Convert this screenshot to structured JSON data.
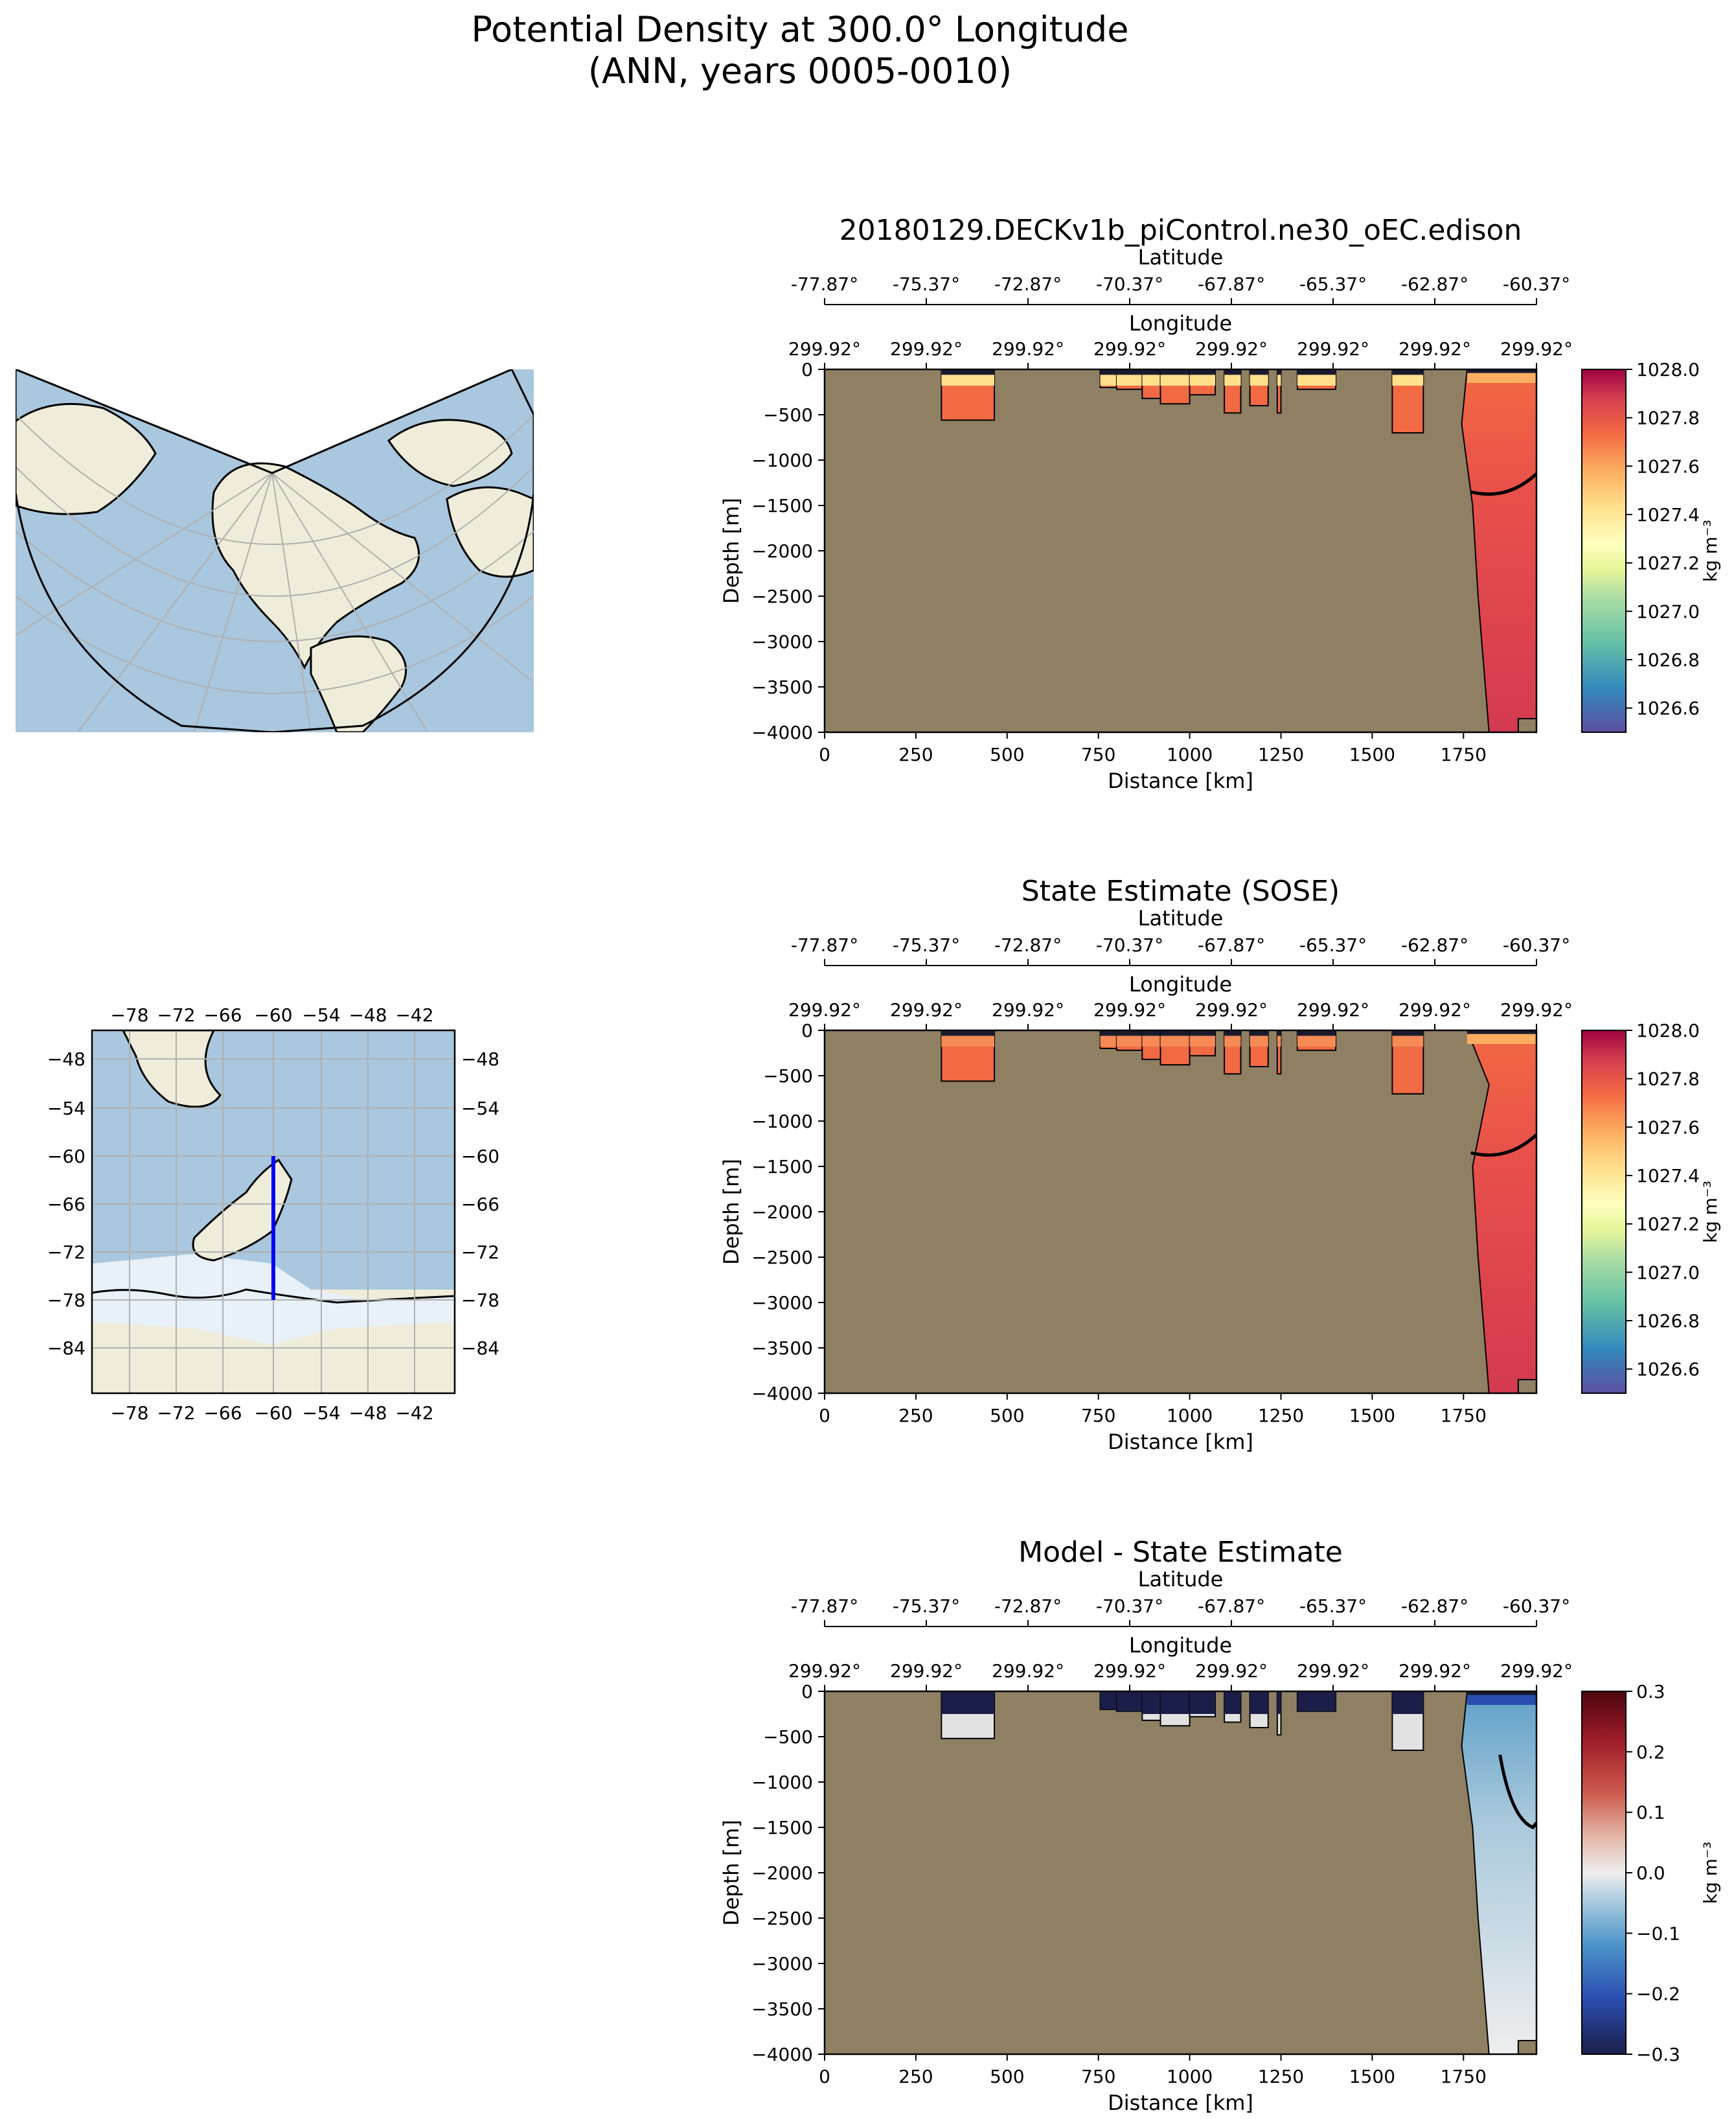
{
  "figure": {
    "title_line1": "Potential Density at 300.0° Longitude",
    "title_line2": "(ANN, years 0005-0010)"
  },
  "colors": {
    "land_fill": "#8f8063",
    "ocean_map": "#a9c7de",
    "land_map": "#efedda",
    "ice_map": "#e8f0f8",
    "transect_line": "#0000ff"
  },
  "chart_data": [
    {
      "type": "heatmap",
      "panel": "model",
      "title": "20180129.DECKv1b_piControl.ne30_oEC.edison",
      "xlabel": "Distance [km]",
      "ylabel": "Depth [m]",
      "xlim": [
        0,
        1950
      ],
      "ylim": [
        -4000,
        0
      ],
      "xticks": [
        "0",
        "250",
        "500",
        "750",
        "1000",
        "1250",
        "1500",
        "1750"
      ],
      "yticks": [
        "0",
        "−500",
        "−1000",
        "−1500",
        "−2000",
        "−2500",
        "−3000",
        "−3500",
        "−4000"
      ],
      "top_axis_1_label": "Latitude",
      "top_axis_1_ticks": [
        "-77.87°",
        "-75.37°",
        "-72.87°",
        "-70.37°",
        "-67.87°",
        "-65.37°",
        "-62.87°",
        "-60.37°"
      ],
      "top_axis_2_label": "Longitude",
      "top_axis_2_ticks": [
        "299.92°",
        "299.92°",
        "299.92°",
        "299.92°",
        "299.92°",
        "299.92°",
        "299.92°",
        "299.92°"
      ],
      "colorbar": {
        "label": "kg m⁻³",
        "ticks": [
          "1026.6",
          "1026.8",
          "1027.0",
          "1027.2",
          "1027.4",
          "1027.6",
          "1027.8",
          "1028.0"
        ],
        "range": [
          1026.5,
          1028.0
        ],
        "colormap": "Spectral_r"
      },
      "water_columns_km": [
        [
          320,
          465
        ],
        [
          755,
          920
        ],
        [
          920,
          1070
        ],
        [
          1095,
          1140
        ],
        [
          1165,
          1215
        ],
        [
          1240,
          1250
        ],
        [
          1295,
          1400
        ],
        [
          1555,
          1640
        ],
        [
          1760,
          1950
        ]
      ]
    },
    {
      "type": "heatmap",
      "panel": "observation",
      "title": "State Estimate (SOSE)",
      "xlabel": "Distance [km]",
      "ylabel": "Depth [m]",
      "xlim": [
        0,
        1950
      ],
      "ylim": [
        -4000,
        0
      ],
      "xticks": [
        "0",
        "250",
        "500",
        "750",
        "1000",
        "1250",
        "1500",
        "1750"
      ],
      "yticks": [
        "0",
        "−500",
        "−1000",
        "−1500",
        "−2000",
        "−2500",
        "−3000",
        "−3500",
        "−4000"
      ],
      "top_axis_1_label": "Latitude",
      "top_axis_1_ticks": [
        "-77.87°",
        "-75.37°",
        "-72.87°",
        "-70.37°",
        "-67.87°",
        "-65.37°",
        "-62.87°",
        "-60.37°"
      ],
      "top_axis_2_label": "Longitude",
      "top_axis_2_ticks": [
        "299.92°",
        "299.92°",
        "299.92°",
        "299.92°",
        "299.92°",
        "299.92°",
        "299.92°",
        "299.92°"
      ],
      "colorbar": {
        "label": "kg m⁻³",
        "ticks": [
          "1026.6",
          "1026.8",
          "1027.0",
          "1027.2",
          "1027.4",
          "1027.6",
          "1027.8",
          "1028.0"
        ],
        "range": [
          1026.5,
          1028.0
        ],
        "colormap": "Spectral_r"
      }
    },
    {
      "type": "heatmap",
      "panel": "difference",
      "title": "Model - State Estimate",
      "xlabel": "Distance [km]",
      "ylabel": "Depth [m]",
      "xlim": [
        0,
        1950
      ],
      "ylim": [
        -4000,
        0
      ],
      "xticks": [
        "0",
        "250",
        "500",
        "750",
        "1000",
        "1250",
        "1500",
        "1750"
      ],
      "yticks": [
        "0",
        "−500",
        "−1000",
        "−1500",
        "−2000",
        "−2500",
        "−3000",
        "−3500",
        "−4000"
      ],
      "top_axis_1_label": "Latitude",
      "top_axis_1_ticks": [
        "-77.87°",
        "-75.37°",
        "-72.87°",
        "-70.37°",
        "-67.87°",
        "-65.37°",
        "-62.87°",
        "-60.37°"
      ],
      "top_axis_2_label": "Longitude",
      "top_axis_2_ticks": [
        "299.92°",
        "299.92°",
        "299.92°",
        "299.92°",
        "299.92°",
        "299.92°",
        "299.92°",
        "299.92°"
      ],
      "colorbar": {
        "label": "kg m⁻³",
        "ticks": [
          "0.3",
          "0.2",
          "0.1",
          "0.0",
          "−0.1",
          "−0.2",
          "−0.3"
        ],
        "range": [
          -0.3,
          0.3
        ],
        "colormap": "RdBu_r"
      }
    }
  ],
  "inset_map": {
    "xticks": [
      "−78",
      "−72",
      "−66",
      "−60",
      "−54",
      "−48",
      "−42"
    ],
    "yticks": [
      "−48",
      "−54",
      "−60",
      "−66",
      "−72",
      "−78",
      "−84"
    ],
    "transect_lon": -60,
    "transect_lat": [
      -78,
      -60
    ]
  }
}
